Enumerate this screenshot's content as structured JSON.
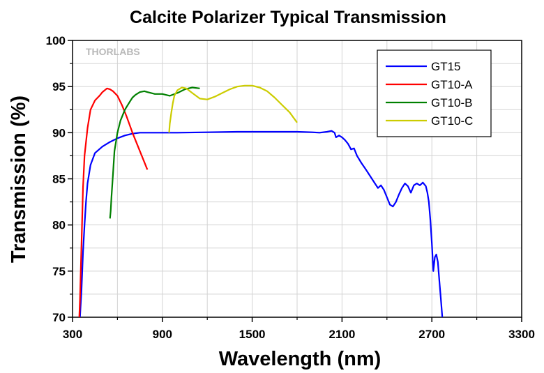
{
  "chart_data": {
    "type": "line",
    "title": "Calcite Polarizer Typical Transmission",
    "xlabel": "Wavelength (nm)",
    "ylabel": "Transmission (%)",
    "xlim": [
      300,
      3300
    ],
    "ylim": [
      70,
      100
    ],
    "xticks": [
      300,
      900,
      1500,
      2100,
      2700,
      3300
    ],
    "yticks": [
      70,
      75,
      80,
      85,
      90,
      95,
      100
    ],
    "grid": true,
    "legend_position": "top-right",
    "watermark": "THORLABS",
    "series": [
      {
        "name": "GT15",
        "color": "#0000ff",
        "x": [
          350,
          360,
          370,
          380,
          390,
          400,
          420,
          450,
          500,
          550,
          600,
          650,
          700,
          750,
          800,
          850,
          900,
          1000,
          1200,
          1400,
          1600,
          1800,
          1900,
          1950,
          2000,
          2030,
          2050,
          2060,
          2080,
          2100,
          2120,
          2140,
          2160,
          2180,
          2200,
          2230,
          2260,
          2280,
          2300,
          2320,
          2340,
          2360,
          2380,
          2400,
          2420,
          2440,
          2460,
          2480,
          2500,
          2520,
          2540,
          2560,
          2580,
          2600,
          2620,
          2640,
          2660,
          2670,
          2680,
          2690,
          2700,
          2710,
          2720,
          2730,
          2740,
          2750,
          2760,
          2770
        ],
        "y": [
          70,
          73,
          77,
          80,
          82.5,
          84.5,
          86.5,
          87.8,
          88.5,
          89,
          89.4,
          89.7,
          89.9,
          90,
          90,
          90,
          90,
          90,
          90.05,
          90.1,
          90.1,
          90.1,
          90.05,
          90,
          90.1,
          90.2,
          90,
          89.5,
          89.7,
          89.5,
          89.2,
          88.8,
          88.2,
          88.3,
          87.5,
          86.7,
          86,
          85.5,
          85,
          84.5,
          84,
          84.3,
          83.8,
          83,
          82.2,
          82,
          82.5,
          83.3,
          84,
          84.5,
          84.2,
          83.5,
          84.3,
          84.5,
          84.3,
          84.6,
          84.2,
          83.5,
          82.5,
          80.5,
          78,
          75,
          76.5,
          76.8,
          76,
          74,
          72,
          70
        ]
      },
      {
        "name": "GT10-A",
        "color": "#ff0000",
        "x": [
          345,
          350,
          360,
          370,
          380,
          400,
          420,
          450,
          480,
          500,
          530,
          550,
          570,
          600,
          630,
          660,
          700,
          750,
          800
        ],
        "y": [
          70,
          72,
          78,
          84,
          87.5,
          90.5,
          92.5,
          93.5,
          94,
          94.4,
          94.8,
          94.7,
          94.5,
          94,
          93,
          91.8,
          90,
          88,
          86
        ]
      },
      {
        "name": "GT10-B",
        "color": "#008000",
        "x": [
          550,
          555,
          560,
          570,
          580,
          600,
          620,
          650,
          680,
          700,
          720,
          750,
          780,
          800,
          850,
          900,
          950,
          1000,
          1050,
          1100,
          1150
        ],
        "y": [
          80.7,
          81.5,
          83,
          85.5,
          88,
          90,
          91.3,
          92.5,
          93.3,
          93.8,
          94.1,
          94.4,
          94.5,
          94.4,
          94.2,
          94.2,
          94,
          94.3,
          94.7,
          94.9,
          94.8
        ]
      },
      {
        "name": "GT10-C",
        "color": "#cccc00",
        "x": [
          945,
          950,
          960,
          970,
          980,
          1000,
          1030,
          1060,
          1100,
          1150,
          1200,
          1250,
          1300,
          1350,
          1400,
          1450,
          1500,
          1550,
          1600,
          1650,
          1700,
          1750,
          1800
        ],
        "y": [
          90,
          91,
          92.2,
          93.2,
          94,
          94.6,
          94.9,
          94.8,
          94.3,
          93.7,
          93.6,
          93.9,
          94.3,
          94.7,
          95,
          95.1,
          95.1,
          94.9,
          94.5,
          93.8,
          93,
          92.2,
          91.1
        ]
      }
    ]
  }
}
